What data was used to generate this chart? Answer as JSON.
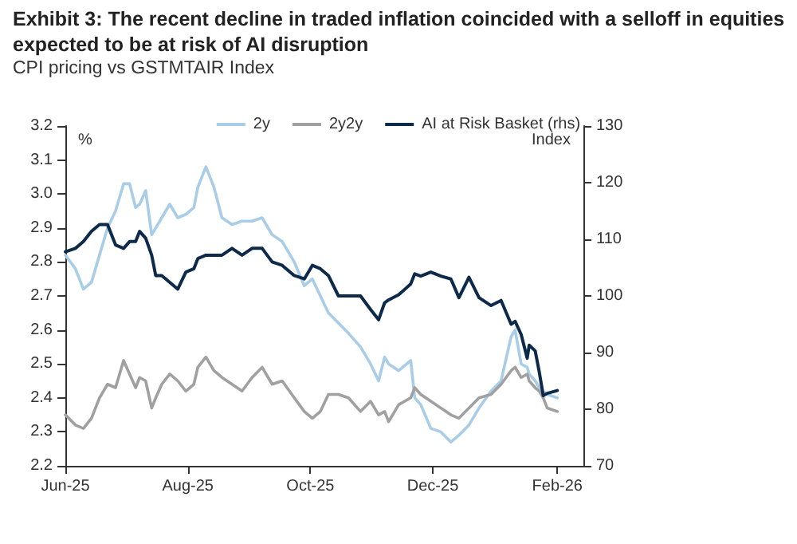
{
  "chart_data": {
    "type": "line",
    "title": "Exhibit 3: The recent decline in traded inflation coincided with a selloff in equities expected to be at risk of AI disruption",
    "subtitle": "CPI pricing vs GSTMTAIR Index",
    "ylabel": "%",
    "y2label": "Index",
    "x": [
      "2025-06-01",
      "2025-06-06",
      "2025-06-10",
      "2025-06-14",
      "2025-06-18",
      "2025-06-22",
      "2025-06-26",
      "2025-06-30",
      "2025-07-03",
      "2025-07-06",
      "2025-07-08",
      "2025-07-11",
      "2025-07-14",
      "2025-07-16",
      "2025-07-19",
      "2025-07-23",
      "2025-07-27",
      "2025-07-31",
      "2025-08-04",
      "2025-08-06",
      "2025-08-10",
      "2025-08-14",
      "2025-08-18",
      "2025-08-23",
      "2025-08-28",
      "2025-09-02",
      "2025-09-07",
      "2025-09-12",
      "2025-09-17",
      "2025-09-23",
      "2025-09-28",
      "2025-10-02",
      "2025-10-06",
      "2025-10-10",
      "2025-10-15",
      "2025-10-20",
      "2025-10-26",
      "2025-10-31",
      "2025-11-04",
      "2025-11-07",
      "2025-11-09",
      "2025-11-14",
      "2025-11-20",
      "2025-11-22",
      "2025-11-25",
      "2025-11-30",
      "2025-12-05",
      "2025-12-10",
      "2025-12-14",
      "2025-12-19",
      "2025-12-24",
      "2025-12-30",
      "2026-01-04",
      "2026-01-09",
      "2026-01-11",
      "2026-01-14",
      "2026-01-17",
      "2026-01-18",
      "2026-01-21",
      "2026-01-23",
      "2026-01-25",
      "2026-01-27",
      "2026-02-01"
    ],
    "series": [
      {
        "name": "2y",
        "color": "#a9cde6",
        "values": [
          2.82,
          2.78,
          2.72,
          2.74,
          2.82,
          2.9,
          2.95,
          3.03,
          3.03,
          2.96,
          2.97,
          3.01,
          2.88,
          2.9,
          2.93,
          2.97,
          2.93,
          2.94,
          2.96,
          3.02,
          3.08,
          3.02,
          2.93,
          2.91,
          2.92,
          2.92,
          2.93,
          2.88,
          2.86,
          2.8,
          2.73,
          2.75,
          2.7,
          2.65,
          2.62,
          2.59,
          2.55,
          2.5,
          2.45,
          2.52,
          2.5,
          2.48,
          2.51,
          2.4,
          2.38,
          2.31,
          2.3,
          2.27,
          2.29,
          2.32,
          2.37,
          2.42,
          2.45,
          2.58,
          2.6,
          2.5,
          2.49,
          2.47,
          2.45,
          2.43,
          2.42,
          2.41,
          2.4
        ]
      },
      {
        "name": "2y2y",
        "color": "#a0a0a0",
        "values": [
          2.35,
          2.32,
          2.31,
          2.34,
          2.4,
          2.44,
          2.43,
          2.51,
          2.47,
          2.43,
          2.46,
          2.45,
          2.37,
          2.4,
          2.44,
          2.47,
          2.45,
          2.42,
          2.44,
          2.49,
          2.52,
          2.48,
          2.46,
          2.44,
          2.42,
          2.46,
          2.49,
          2.44,
          2.45,
          2.4,
          2.36,
          2.34,
          2.36,
          2.41,
          2.41,
          2.4,
          2.36,
          2.39,
          2.35,
          2.36,
          2.33,
          2.38,
          2.4,
          2.43,
          2.41,
          2.39,
          2.37,
          2.35,
          2.34,
          2.37,
          2.4,
          2.41,
          2.44,
          2.48,
          2.49,
          2.46,
          2.47,
          2.45,
          2.43,
          2.42,
          2.4,
          2.37,
          2.36
        ]
      },
      {
        "name": "AI at Risk Basket (rhs)",
        "color": "#0d2a4a",
        "axis": "y2",
        "values": [
          107.8,
          108.4,
          109.6,
          111.4,
          112.6,
          112.6,
          109,
          108.4,
          109.6,
          109.6,
          111.4,
          110.2,
          107.2,
          103.6,
          103.6,
          102.4,
          101.2,
          104.2,
          104.8,
          106.6,
          107.2,
          107.2,
          107.2,
          108.4,
          107.2,
          108.4,
          108.4,
          106,
          105.4,
          103.6,
          103,
          105.4,
          104.8,
          103.6,
          100,
          100,
          100,
          97.6,
          95.8,
          98.8,
          99.3,
          100.2,
          102.1,
          103.9,
          103.5,
          104.2,
          103.5,
          103,
          99.7,
          103.3,
          99.7,
          98.3,
          99.2,
          95,
          95.5,
          93.2,
          89,
          91.3,
          90.3,
          86.6,
          82.4,
          82.8,
          83.3
        ]
      }
    ],
    "xlim": [
      "2025-06-01",
      "2026-02-14"
    ],
    "xticks": [
      {
        "value": "2025-06-01",
        "label": "Jun-25"
      },
      {
        "value": "2025-08-01",
        "label": "Aug-25"
      },
      {
        "value": "2025-10-01",
        "label": "Oct-25"
      },
      {
        "value": "2025-12-01",
        "label": "Dec-25"
      },
      {
        "value": "2026-02-01",
        "label": "Feb-26"
      }
    ],
    "ylim": [
      2.2,
      3.2
    ],
    "yticks": [
      2.2,
      2.3,
      2.4,
      2.5,
      2.6,
      2.7,
      2.8,
      2.9,
      {
        "value": 3,
        "label": "3.0"
      },
      3.1,
      3.2
    ],
    "y2lim": [
      70,
      130
    ],
    "y2ticks": [
      70,
      80,
      90,
      100,
      110,
      120,
      130
    ],
    "legend": "top",
    "grid": false,
    "marker": "none",
    "line_style": "solid"
  }
}
